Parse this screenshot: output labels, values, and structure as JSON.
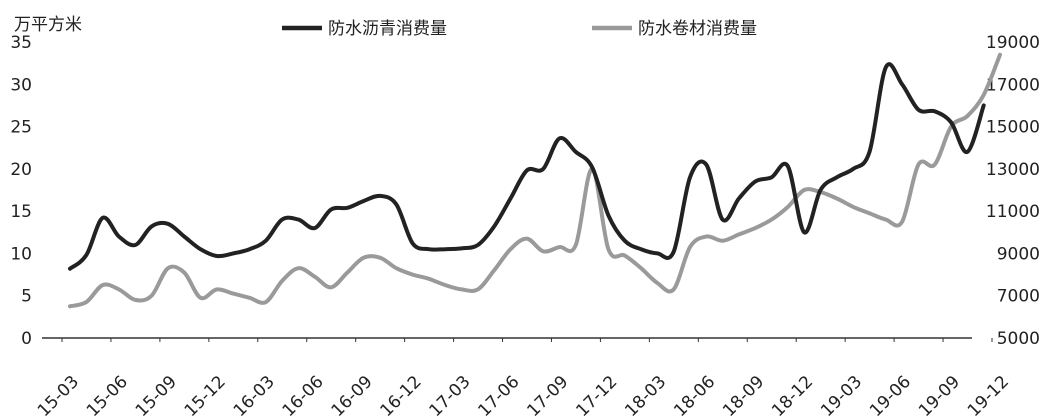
{
  "chart_data": {
    "type": "line",
    "unit_label": "万平方米",
    "x_tick_labels": [
      "15-03",
      "15-06",
      "15-09",
      "15-12",
      "16-03",
      "16-06",
      "16-09",
      "16-12",
      "17-03",
      "17-06",
      "17-09",
      "17-12",
      "18-03",
      "18-06",
      "18-09",
      "18-12",
      "19-03",
      "19-06",
      "19-09",
      "19-12"
    ],
    "y_left": {
      "min": 0,
      "max": 35,
      "ticks": [
        0,
        5,
        10,
        15,
        20,
        25,
        30,
        35
      ]
    },
    "y_right": {
      "min": 5000,
      "max": 19000,
      "ticks": [
        5000,
        7000,
        9000,
        11000,
        13000,
        15000,
        17000,
        19000
      ]
    },
    "legend_position": "top",
    "grid": false,
    "series": [
      {
        "name": "防水沥青消费量",
        "axis": "left",
        "color": "#222222",
        "x": [
          0,
          1,
          2,
          3,
          4,
          5,
          6,
          7,
          8,
          9,
          10,
          11,
          12,
          13,
          14,
          15,
          16,
          17,
          18,
          19,
          20,
          21,
          22,
          23,
          24,
          25,
          26,
          27,
          28,
          29,
          30,
          31,
          32,
          33,
          34,
          35,
          36,
          37,
          38,
          39,
          40,
          41,
          42,
          43,
          44,
          45,
          46,
          47,
          48,
          49,
          50,
          51,
          52,
          53,
          54,
          55,
          56
        ],
        "values": [
          8.2,
          9.8,
          14.2,
          12.0,
          11.0,
          13.2,
          13.5,
          12.0,
          10.5,
          9.7,
          10.0,
          10.5,
          11.5,
          14.0,
          14.0,
          13.0,
          15.2,
          15.4,
          16.2,
          16.8,
          15.8,
          11.2,
          10.5,
          10.5,
          10.6,
          11.0,
          13.2,
          16.5,
          19.8,
          20.0,
          23.6,
          22.0,
          20.2,
          14.5,
          11.5,
          10.5,
          10.0,
          10.2,
          19.0,
          20.5,
          14.0,
          16.5,
          18.5,
          19.0,
          20.3,
          12.5,
          17.5,
          19.0,
          20.0,
          22.0,
          32.0,
          30.0,
          27.0,
          26.8,
          25.5,
          22.0,
          27.5
        ]
      },
      {
        "name": "防水卷材消费量",
        "axis": "right",
        "color": "#9a9a9a",
        "x": [
          0,
          1,
          2,
          3,
          4,
          5,
          6,
          7,
          8,
          9,
          10,
          11,
          12,
          13,
          14,
          15,
          16,
          17,
          18,
          19,
          20,
          21,
          22,
          23,
          24,
          25,
          26,
          27,
          28,
          29,
          30,
          31,
          32,
          33,
          34,
          35,
          36,
          37,
          38,
          39,
          40,
          41,
          42,
          43,
          44,
          45,
          46,
          47,
          48,
          49,
          50,
          51,
          52,
          53,
          54,
          55,
          56,
          57
        ],
        "values": [
          6500,
          6700,
          7500,
          7300,
          6800,
          7000,
          8300,
          8100,
          6900,
          7300,
          7100,
          6900,
          6700,
          7700,
          8300,
          7900,
          7400,
          8100,
          8800,
          8800,
          8300,
          8000,
          7800,
          7500,
          7300,
          7300,
          8200,
          9200,
          9700,
          9100,
          9300,
          9400,
          13000,
          9200,
          8900,
          8300,
          7600,
          7300,
          9300,
          9800,
          9600,
          9900,
          10200,
          10600,
          11200,
          12000,
          11900,
          11600,
          11200,
          10900,
          10600,
          10500,
          13200,
          13200,
          15000,
          15500,
          16500,
          18400
        ]
      }
    ]
  }
}
